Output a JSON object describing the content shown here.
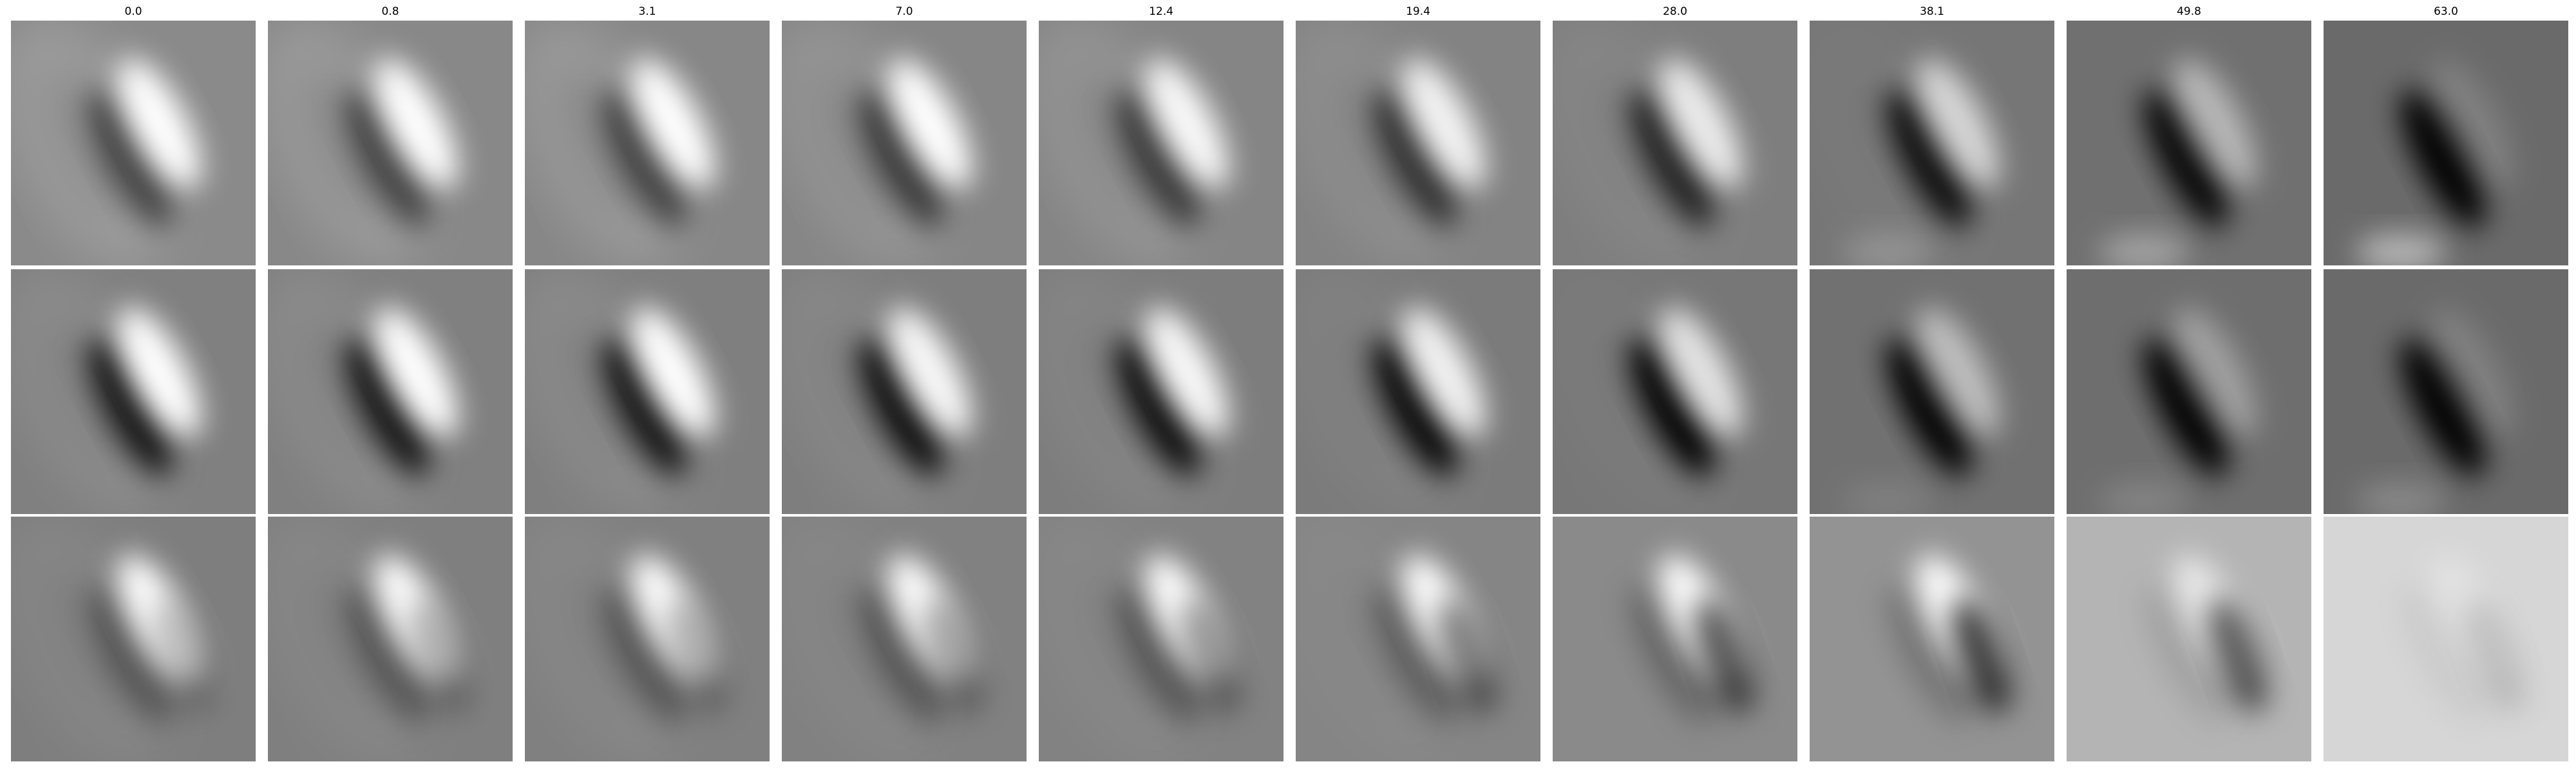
{
  "column_titles": [
    "0.0",
    "0.8",
    "3.1",
    "7.0",
    "12.4",
    "19.4",
    "28.0",
    "38.1",
    "49.8",
    "63.0"
  ],
  "rows": [
    {
      "name": "row-1",
      "cells": [
        {
          "bg": "#8a8a8a",
          "neg": 0.55,
          "pos": 1.0,
          "arc": 0.25,
          "blob": 0.0
        },
        {
          "bg": "#888888",
          "neg": 0.55,
          "pos": 1.0,
          "arc": 0.25,
          "blob": 0.0
        },
        {
          "bg": "#878787",
          "neg": 0.55,
          "pos": 1.0,
          "arc": 0.25,
          "blob": 0.0
        },
        {
          "bg": "#868686",
          "neg": 0.6,
          "pos": 1.0,
          "arc": 0.2,
          "blob": 0.0
        },
        {
          "bg": "#858585",
          "neg": 0.6,
          "pos": 0.95,
          "arc": 0.2,
          "blob": 0.0
        },
        {
          "bg": "#838383",
          "neg": 0.65,
          "pos": 0.9,
          "arc": 0.15,
          "blob": 0.0
        },
        {
          "bg": "#7e7e7e",
          "neg": 0.75,
          "pos": 0.85,
          "arc": 0.1,
          "blob": 0.0
        },
        {
          "bg": "#767676",
          "neg": 0.9,
          "pos": 0.7,
          "arc": 0.05,
          "blob": 0.2
        },
        {
          "bg": "#707070",
          "neg": 0.95,
          "pos": 0.5,
          "arc": 0.0,
          "blob": 0.35
        },
        {
          "bg": "#6a6a6a",
          "neg": 1.0,
          "pos": 0.15,
          "arc": 0.0,
          "blob": 0.5
        }
      ]
    },
    {
      "name": "row-2",
      "cells": [
        {
          "bg": "#808080",
          "neg": 0.85,
          "pos": 1.0,
          "arc": 0.15,
          "blob": 0.0
        },
        {
          "bg": "#808080",
          "neg": 0.85,
          "pos": 1.0,
          "arc": 0.15,
          "blob": 0.0
        },
        {
          "bg": "#7f7f7f",
          "neg": 0.85,
          "pos": 1.0,
          "arc": 0.15,
          "blob": 0.0
        },
        {
          "bg": "#7e7e7e",
          "neg": 0.9,
          "pos": 0.95,
          "arc": 0.12,
          "blob": 0.0
        },
        {
          "bg": "#7d7d7d",
          "neg": 0.9,
          "pos": 0.95,
          "arc": 0.1,
          "blob": 0.0
        },
        {
          "bg": "#7b7b7b",
          "neg": 0.95,
          "pos": 0.9,
          "arc": 0.08,
          "blob": 0.0
        },
        {
          "bg": "#777777",
          "neg": 1.0,
          "pos": 0.8,
          "arc": 0.05,
          "blob": 0.0
        },
        {
          "bg": "#717171",
          "neg": 1.0,
          "pos": 0.55,
          "arc": 0.0,
          "blob": 0.1
        },
        {
          "bg": "#6e6e6e",
          "neg": 1.0,
          "pos": 0.35,
          "arc": 0.0,
          "blob": 0.15
        },
        {
          "bg": "#6a6a6a",
          "neg": 1.0,
          "pos": 0.15,
          "arc": 0.0,
          "blob": 0.2
        }
      ]
    },
    {
      "name": "row-3",
      "cells": [
        {
          "bg": "#7e7e7e",
          "neg": 0.35,
          "pos": 1.0,
          "arc": 0.1,
          "blob": 0.0,
          "rdark": 0.25
        },
        {
          "bg": "#7f7f7f",
          "neg": 0.35,
          "pos": 1.0,
          "arc": 0.1,
          "blob": 0.0,
          "rdark": 0.3
        },
        {
          "bg": "#808080",
          "neg": 0.35,
          "pos": 1.0,
          "arc": 0.1,
          "blob": 0.0,
          "rdark": 0.3
        },
        {
          "bg": "#818181",
          "neg": 0.35,
          "pos": 1.0,
          "arc": 0.08,
          "blob": 0.0,
          "rdark": 0.35
        },
        {
          "bg": "#828282",
          "neg": 0.35,
          "pos": 1.0,
          "arc": 0.08,
          "blob": 0.0,
          "rdark": 0.4
        },
        {
          "bg": "#858585",
          "neg": 0.3,
          "pos": 1.0,
          "arc": 0.05,
          "blob": 0.0,
          "rdark": 0.5
        },
        {
          "bg": "#8a8a8a",
          "neg": 0.25,
          "pos": 1.0,
          "arc": 0.0,
          "blob": 0.0,
          "rdark": 0.65
        },
        {
          "bg": "#939393",
          "neg": 0.2,
          "pos": 1.0,
          "arc": 0.0,
          "blob": 0.0,
          "rdark": 0.75
        },
        {
          "bg": "#b4b4b4",
          "neg": 0.1,
          "pos": 0.7,
          "arc": 0.0,
          "blob": 0.0,
          "rdark": 0.6
        },
        {
          "bg": "#d6d6d6",
          "neg": 0.05,
          "pos": 0.3,
          "arc": 0.0,
          "blob": 0.0,
          "rdark": 0.15
        }
      ]
    }
  ]
}
